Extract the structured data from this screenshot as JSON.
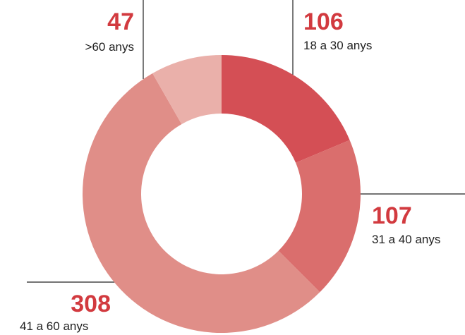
{
  "chart_data": {
    "type": "donut",
    "categories": [
      "18 a 30 anys",
      "31 a 40 anys",
      "41 a 60 anys",
      ">60 anys"
    ],
    "values": [
      106,
      107,
      308,
      47
    ],
    "colors": [
      "#d44f55",
      "#da6e6d",
      "#e08e88",
      "#eab0aa"
    ]
  }
}
